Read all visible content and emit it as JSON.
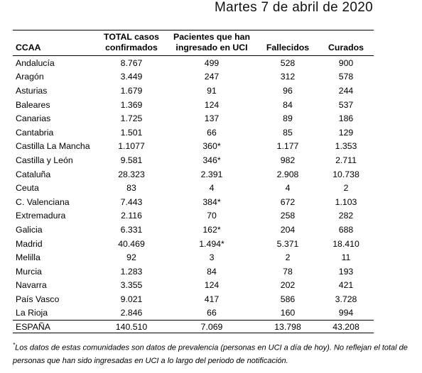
{
  "header": {
    "date": "Martes 7 de abril de 2020"
  },
  "table": {
    "columns": [
      "CCAA",
      "TOTAL casos confirmados",
      "Pacientes que han ingresado en UCI",
      "Fallecidos",
      "Curados"
    ],
    "rows": [
      [
        "Andalucía",
        "8.767",
        "499",
        "528",
        "900"
      ],
      [
        "Aragón",
        "3.449",
        "247",
        "312",
        "578"
      ],
      [
        "Asturias",
        "1.679",
        "91",
        "96",
        "244"
      ],
      [
        "Baleares",
        "1.369",
        "124",
        "84",
        "537"
      ],
      [
        "Canarias",
        "1.725",
        "137",
        "89",
        "186"
      ],
      [
        "Cantabria",
        "1.501",
        "66",
        "85",
        "129"
      ],
      [
        "Castilla La Mancha",
        "1.1077",
        "360*",
        "1.177",
        "1.353"
      ],
      [
        "Castilla y León",
        "9.581",
        "346*",
        "982",
        "2.711"
      ],
      [
        "Cataluña",
        "28.323",
        "2.391",
        "2.908",
        "10.738"
      ],
      [
        "Ceuta",
        "83",
        "4",
        "4",
        "2"
      ],
      [
        "C. Valenciana",
        "7.443",
        "384*",
        "672",
        "1.103"
      ],
      [
        "Extremadura",
        "2.116",
        "70",
        "258",
        "282"
      ],
      [
        "Galicia",
        "6.331",
        "162*",
        "204",
        "688"
      ],
      [
        "Madrid",
        "40.469",
        "1.494*",
        "5.371",
        "18.410"
      ],
      [
        "Melilla",
        "92",
        "3",
        "2",
        "11"
      ],
      [
        "Murcia",
        "1.283",
        "84",
        "78",
        "193"
      ],
      [
        "Navarra",
        "3.355",
        "124",
        "202",
        "421"
      ],
      [
        "País Vasco",
        "9.021",
        "417",
        "586",
        "3.728"
      ],
      [
        "La Rioja",
        "2.846",
        "66",
        "160",
        "994"
      ]
    ],
    "total": [
      "ESPAÑA",
      "140.510",
      "7.069",
      "13.798",
      "43.208"
    ]
  },
  "footnote": {
    "marker": "*",
    "text": "Los datos de estas comunidades son datos de prevalencia (personas en UCI a día de hoy). No reflejan el total de personas que han sido ingresadas en UCI a lo largo del periodo de notificación."
  }
}
